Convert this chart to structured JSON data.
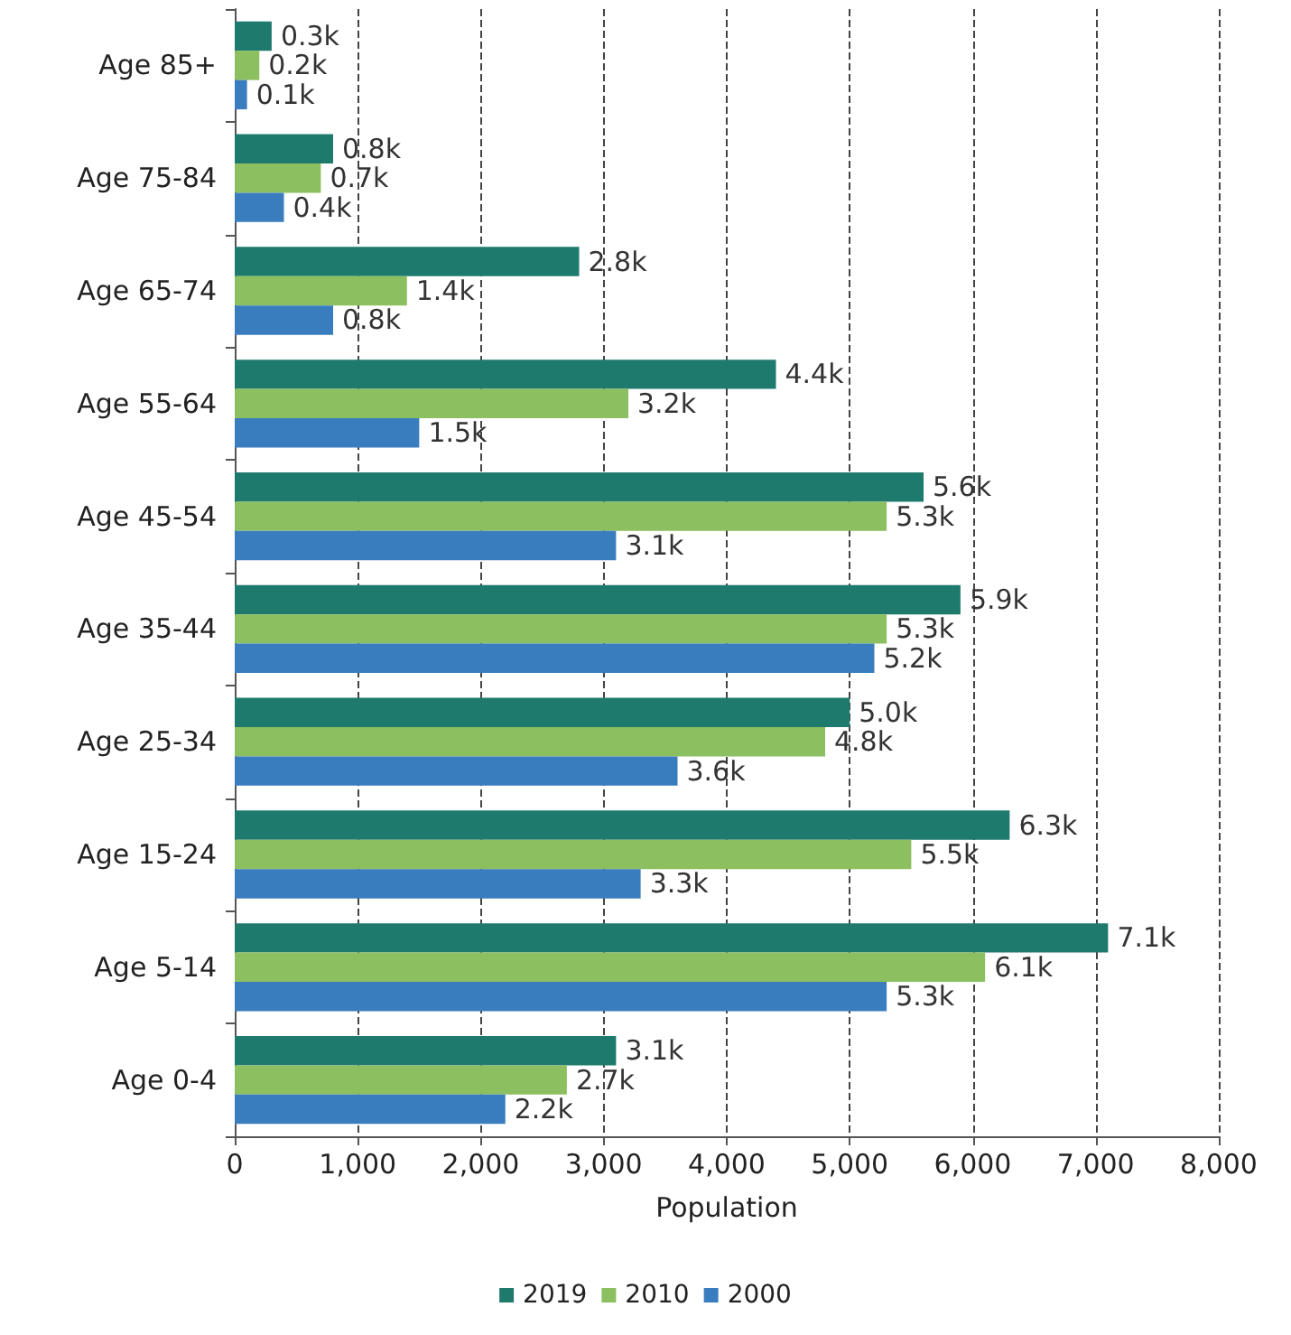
{
  "chart_data": {
    "type": "bar",
    "orientation": "horizontal",
    "xlabel": "Population",
    "categories": [
      "Age 85+",
      "Age 75-84",
      "Age 65-74",
      "Age 55-64",
      "Age 45-54",
      "Age 35-44",
      "Age 25-34",
      "Age 15-24",
      "Age 5-14",
      "Age 0-4"
    ],
    "series": [
      {
        "name": "2019",
        "color": "#1f7a6e",
        "values": [
          300,
          800,
          2800,
          4400,
          5600,
          5900,
          5000,
          6300,
          7100,
          3100
        ],
        "value_labels": [
          "0.3k",
          "0.8k",
          "2.8k",
          "4.4k",
          "5.6k",
          "5.9k",
          "5.0k",
          "6.3k",
          "7.1k",
          "3.1k"
        ]
      },
      {
        "name": "2010",
        "color": "#8cbf5f",
        "values": [
          200,
          700,
          1400,
          3200,
          5300,
          5300,
          4800,
          5500,
          6100,
          2700
        ],
        "value_labels": [
          "0.2k",
          "0.7k",
          "1.4k",
          "3.2k",
          "5.3k",
          "5.3k",
          "4.8k",
          "5.5k",
          "6.1k",
          "2.7k"
        ]
      },
      {
        "name": "2000",
        "color": "#3a7dbf",
        "values": [
          100,
          400,
          800,
          1500,
          3100,
          5200,
          3600,
          3300,
          5300,
          2200
        ],
        "value_labels": [
          "0.1k",
          "0.4k",
          "0.8k",
          "1.5k",
          "3.1k",
          "5.2k",
          "3.6k",
          "3.3k",
          "5.3k",
          "2.2k"
        ]
      }
    ],
    "xlim": [
      0,
      8000
    ],
    "xticks": [
      0,
      {
        "value": 1000,
        "label": "1,000"
      },
      {
        "value": 2000,
        "label": "2,000"
      },
      {
        "value": 3000,
        "label": "3,000"
      },
      {
        "value": 4000,
        "label": "4,000"
      },
      {
        "value": 5000,
        "label": "5,000"
      },
      {
        "value": 6000,
        "label": "6,000"
      },
      {
        "value": 7000,
        "label": "7,000"
      },
      {
        "value": 8000,
        "label": "8,000"
      }
    ],
    "grid": "x",
    "legend": "bottom"
  }
}
